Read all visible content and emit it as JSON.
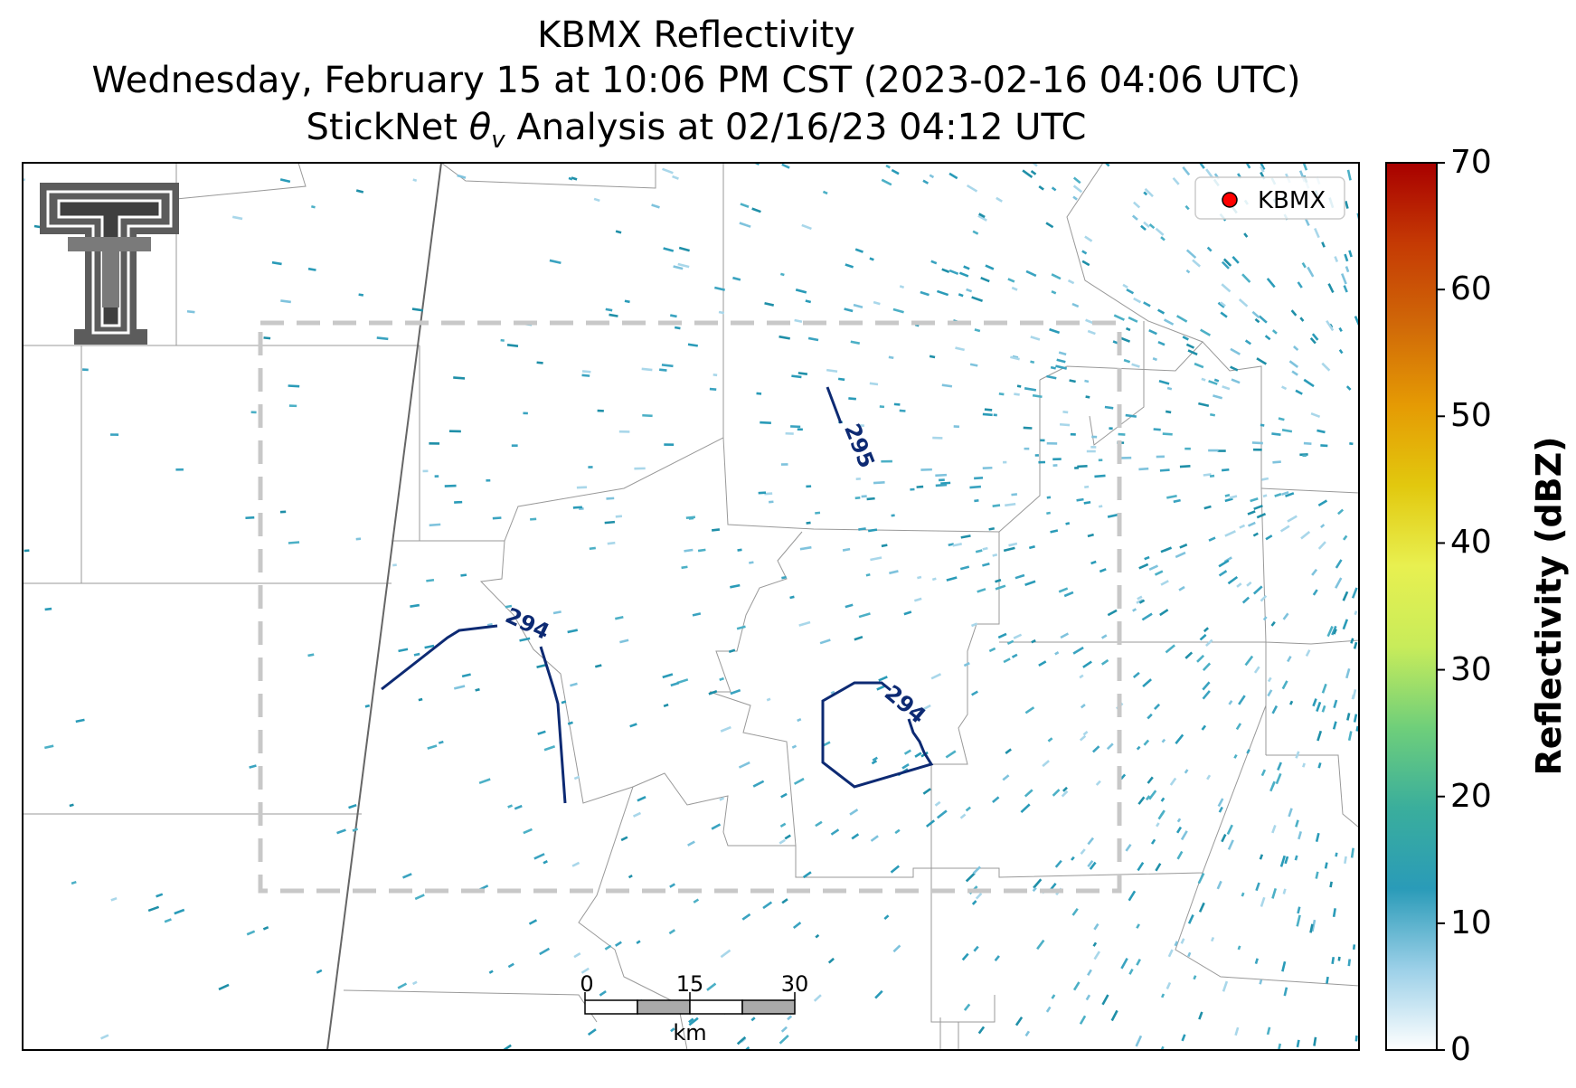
{
  "title": {
    "line1": "KBMX Reflectivity",
    "line2": "Wednesday, February 15 at 10:06 PM CST (2023-02-16 04:06 UTC)",
    "line3_prefix": "StickNet ",
    "line3_symbol": "θ",
    "line3_sub": "v",
    "line3_suffix": " Analysis at 02/16/23 04:12 UTC"
  },
  "legend": {
    "marker_label": "KBMX",
    "marker_color": "#ff0000"
  },
  "colorbar": {
    "label": "Reflectivity (dBZ)",
    "ticks": [
      "70",
      "60",
      "50",
      "40",
      "30",
      "20",
      "10",
      "0"
    ],
    "range": [
      0,
      70
    ],
    "colors": [
      "#ffffff",
      "#9cd0e8",
      "#2a9bb8",
      "#3aae9c",
      "#6fcf7a",
      "#c8ec5a",
      "#e8f050",
      "#e2c80e",
      "#e59a04",
      "#d06808",
      "#c53a04",
      "#a80000"
    ]
  },
  "contours": {
    "color": "#0d2a73",
    "labels": [
      "295",
      "294",
      "294"
    ]
  },
  "scale_bar": {
    "ticks": [
      "0",
      "15",
      "30"
    ],
    "unit": "km"
  },
  "logo": {
    "name": "texas-tech-double-t-logo",
    "color": "#5c5c5c"
  },
  "analysis_box_color": "#c8c8c8",
  "echo_color": "#2a9bb8"
}
